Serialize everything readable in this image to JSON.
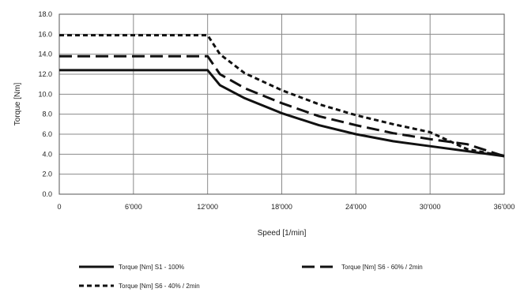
{
  "chart_data": {
    "type": "line",
    "title": "",
    "xlabel": "Speed [1/min]",
    "ylabel": "Torque [Nm]",
    "xlim": [
      0,
      36000
    ],
    "ylim": [
      0,
      18
    ],
    "grid": true,
    "x_tick_values": [
      0,
      6000,
      12000,
      18000,
      24000,
      30000,
      36000
    ],
    "x_tick_labels": [
      "0",
      "6'000",
      "12'000",
      "18'000",
      "24'000",
      "30'000",
      "36'000"
    ],
    "y_tick_values": [
      0,
      2,
      4,
      6,
      8,
      10,
      12,
      14,
      16,
      18
    ],
    "y_tick_labels": [
      "0.0",
      "2.0",
      "4.0",
      "6.0",
      "8.0",
      "10.0",
      "12.0",
      "14.0",
      "16.0",
      "18.0"
    ],
    "legend_position": "bottom",
    "series": [
      {
        "name": "Torque [Nm] S1 - 100%",
        "style": "solid",
        "color": "#111111",
        "x": [
          0,
          12000,
          13000,
          15000,
          18000,
          21000,
          24000,
          27000,
          30000,
          33000,
          36000
        ],
        "y": [
          12.4,
          12.4,
          10.9,
          9.6,
          8.1,
          6.9,
          6.0,
          5.3,
          4.8,
          4.3,
          3.8
        ]
      },
      {
        "name": "Torque [Nm] S6 - 60% / 2min",
        "style": "long-dash",
        "color": "#111111",
        "x": [
          0,
          12000,
          13000,
          15000,
          18000,
          21000,
          24000,
          27000,
          30000,
          33000,
          36000
        ],
        "y": [
          13.8,
          13.8,
          12.0,
          10.6,
          9.1,
          7.8,
          6.9,
          6.1,
          5.5,
          5.0,
          3.8
        ]
      },
      {
        "name": "Torque [Nm] S6 - 40% / 2min",
        "style": "short-dash",
        "color": "#111111",
        "x": [
          0,
          12000,
          13000,
          15000,
          18000,
          21000,
          24000,
          27000,
          30000,
          33000,
          36000
        ],
        "y": [
          15.9,
          15.9,
          14.0,
          12.1,
          10.4,
          9.0,
          7.9,
          7.0,
          6.2,
          4.5,
          3.8
        ]
      }
    ]
  }
}
